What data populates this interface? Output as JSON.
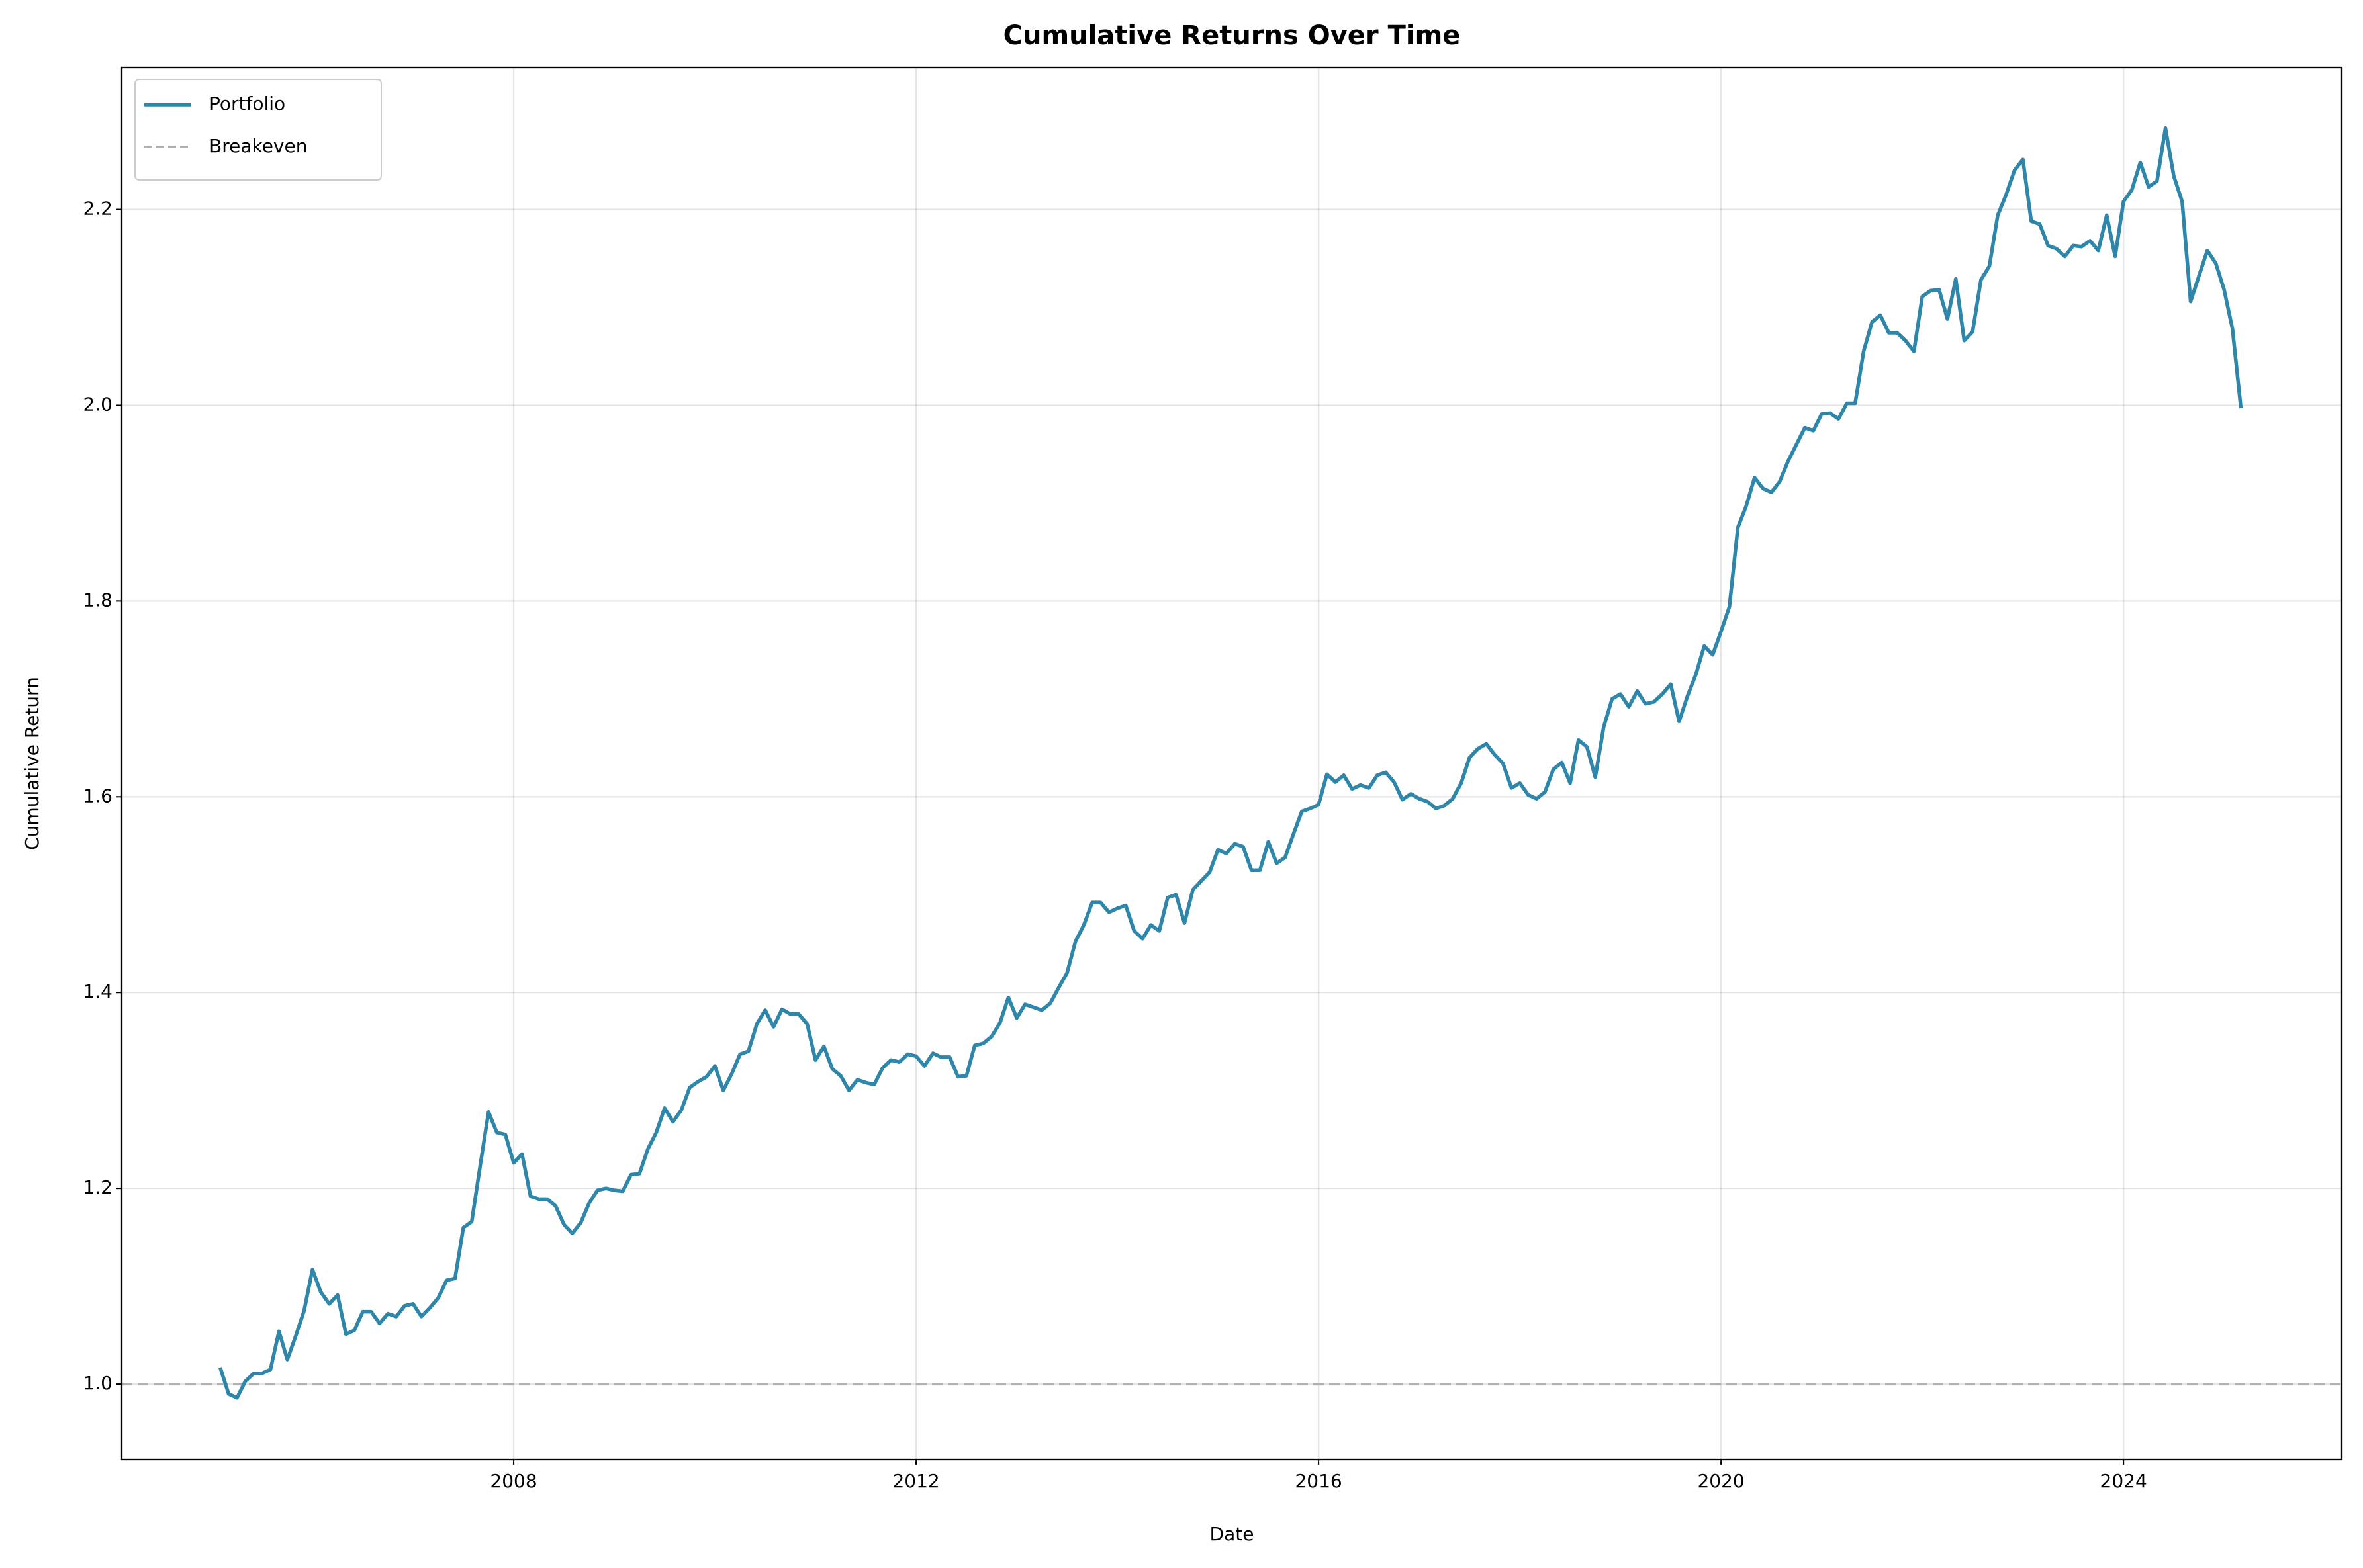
{
  "chart_data": {
    "type": "line",
    "title": "Cumulative Returns Over Time",
    "xlabel": "Date",
    "ylabel": "Cumulative Return",
    "x": [
      2005.083,
      2005.167,
      2005.25,
      2005.333,
      2005.417,
      2005.5,
      2005.583,
      2005.667,
      2005.75,
      2005.833,
      2005.917,
      2006,
      2006.083,
      2006.167,
      2006.25,
      2006.333,
      2006.417,
      2006.5,
      2006.583,
      2006.667,
      2006.75,
      2006.833,
      2006.917,
      2007,
      2007.083,
      2007.167,
      2007.25,
      2007.333,
      2007.417,
      2007.5,
      2007.583,
      2007.667,
      2007.75,
      2007.833,
      2007.917,
      2008,
      2008.083,
      2008.167,
      2008.25,
      2008.333,
      2008.417,
      2008.5,
      2008.583,
      2008.667,
      2008.75,
      2008.833,
      2008.917,
      2009,
      2009.083,
      2009.167,
      2009.25,
      2009.333,
      2009.417,
      2009.5,
      2009.583,
      2009.667,
      2009.75,
      2009.833,
      2009.917,
      2010,
      2010.083,
      2010.167,
      2010.25,
      2010.333,
      2010.417,
      2010.5,
      2010.583,
      2010.667,
      2010.75,
      2010.833,
      2010.917,
      2011,
      2011.083,
      2011.167,
      2011.25,
      2011.333,
      2011.417,
      2011.5,
      2011.583,
      2011.667,
      2011.75,
      2011.833,
      2011.917,
      2012,
      2012.083,
      2012.167,
      2012.25,
      2012.333,
      2012.417,
      2012.5,
      2012.583,
      2012.667,
      2012.75,
      2012.833,
      2012.917,
      2013,
      2013.083,
      2013.167,
      2013.25,
      2013.333,
      2013.417,
      2013.5,
      2013.583,
      2013.667,
      2013.75,
      2013.833,
      2013.917,
      2014,
      2014.083,
      2014.167,
      2014.25,
      2014.333,
      2014.417,
      2014.5,
      2014.583,
      2014.667,
      2014.75,
      2014.833,
      2014.917,
      2015,
      2015.083,
      2015.167,
      2015.25,
      2015.333,
      2015.417,
      2015.5,
      2015.583,
      2015.667,
      2015.75,
      2015.833,
      2015.917,
      2016,
      2016.083,
      2016.167,
      2016.25,
      2016.333,
      2016.417,
      2016.5,
      2016.583,
      2016.667,
      2016.75,
      2016.833,
      2016.917,
      2017,
      2017.083,
      2017.167,
      2017.25,
      2017.333,
      2017.417,
      2017.5,
      2017.583,
      2017.667,
      2017.75,
      2017.833,
      2017.917,
      2018,
      2018.083,
      2018.167,
      2018.25,
      2018.333,
      2018.417,
      2018.5,
      2018.583,
      2018.667,
      2018.75,
      2018.833,
      2018.917,
      2019,
      2019.083,
      2019.167,
      2019.25,
      2019.333,
      2019.417,
      2019.5,
      2019.583,
      2019.667,
      2019.75,
      2019.833,
      2019.917,
      2020,
      2020.083,
      2020.167,
      2020.25,
      2020.333,
      2020.417,
      2020.5,
      2020.583,
      2020.667,
      2020.75,
      2020.833,
      2020.917,
      2021,
      2021.083,
      2021.167,
      2021.25,
      2021.333,
      2021.417,
      2021.5,
      2021.583,
      2021.667,
      2021.75,
      2021.833,
      2021.917,
      2022,
      2022.083,
      2022.167,
      2022.25,
      2022.333,
      2022.417,
      2022.5,
      2022.583,
      2022.667,
      2022.75,
      2022.833,
      2022.917,
      2023,
      2023.083,
      2023.167,
      2023.25,
      2023.333,
      2023.417,
      2023.5,
      2023.583,
      2023.667,
      2023.75,
      2023.833,
      2023.917,
      2024,
      2024.083,
      2024.167,
      2024.25,
      2024.333,
      2024.417,
      2024.5,
      2024.583,
      2024.667,
      2024.75,
      2024.833,
      2024.917,
      2025,
      2025.083,
      2025.167
    ],
    "series": [
      {
        "name": "Portfolio",
        "color": "#2e86ab",
        "values": [
          1.017,
          0.99,
          0.986,
          1.003,
          1.011,
          1.011,
          1.015,
          1.054,
          1.025,
          1.049,
          1.075,
          1.117,
          1.094,
          1.082,
          1.091,
          1.051,
          1.055,
          1.074,
          1.074,
          1.062,
          1.072,
          1.069,
          1.08,
          1.082,
          1.069,
          1.078,
          1.088,
          1.106,
          1.108,
          1.16,
          1.166,
          1.223,
          1.278,
          1.257,
          1.255,
          1.226,
          1.235,
          1.192,
          1.189,
          1.189,
          1.182,
          1.163,
          1.154,
          1.165,
          1.185,
          1.198,
          1.2,
          1.198,
          1.197,
          1.214,
          1.215,
          1.24,
          1.257,
          1.282,
          1.268,
          1.28,
          1.303,
          1.309,
          1.314,
          1.325,
          1.3,
          1.317,
          1.337,
          1.34,
          1.368,
          1.382,
          1.365,
          1.383,
          1.378,
          1.378,
          1.368,
          1.331,
          1.345,
          1.322,
          1.315,
          1.3,
          1.311,
          1.308,
          1.306,
          1.323,
          1.331,
          1.329,
          1.337,
          1.335,
          1.325,
          1.338,
          1.334,
          1.334,
          1.314,
          1.315,
          1.346,
          1.348,
          1.355,
          1.369,
          1.395,
          1.374,
          1.388,
          1.385,
          1.382,
          1.389,
          1.405,
          1.42,
          1.452,
          1.469,
          1.492,
          1.492,
          1.482,
          1.486,
          1.489,
          1.463,
          1.455,
          1.469,
          1.463,
          1.497,
          1.5,
          1.471,
          1.505,
          1.514,
          1.523,
          1.546,
          1.542,
          1.552,
          1.549,
          1.525,
          1.525,
          1.554,
          1.532,
          1.538,
          1.562,
          1.585,
          1.588,
          1.592,
          1.623,
          1.615,
          1.622,
          1.608,
          1.612,
          1.609,
          1.622,
          1.625,
          1.615,
          1.597,
          1.603,
          1.598,
          1.595,
          1.588,
          1.591,
          1.598,
          1.614,
          1.64,
          1.649,
          1.654,
          1.643,
          1.634,
          1.609,
          1.614,
          1.602,
          1.598,
          1.605,
          1.628,
          1.635,
          1.614,
          1.658,
          1.651,
          1.62,
          1.671,
          1.7,
          1.705,
          1.692,
          1.708,
          1.695,
          1.697,
          1.705,
          1.715,
          1.677,
          1.703,
          1.725,
          1.754,
          1.745,
          1.769,
          1.794,
          1.875,
          1.897,
          1.926,
          1.915,
          1.911,
          1.922,
          1.943,
          1.96,
          1.977,
          1.974,
          1.991,
          1.992,
          1.986,
          2.002,
          2.002,
          2.055,
          2.085,
          2.092,
          2.074,
          2.074,
          2.066,
          2.055,
          2.111,
          2.117,
          2.118,
          2.088,
          2.129,
          2.066,
          2.075,
          2.128,
          2.142,
          2.194,
          2.215,
          2.24,
          2.251,
          2.188,
          2.185,
          2.163,
          2.16,
          2.152,
          2.163,
          2.162,
          2.168,
          2.158,
          2.194,
          2.152,
          2.208,
          2.22,
          2.248,
          2.223,
          2.229,
          2.283,
          2.234,
          2.208,
          2.106,
          2.132,
          2.158,
          2.145,
          2.118,
          2.078,
          1.997
        ]
      }
    ],
    "reference_lines": [
      {
        "name": "Breakeven",
        "value": 1,
        "color": "#b0b0b0"
      }
    ],
    "xlim": [
      2004.105,
      2026.17
    ],
    "ylim": [
      0.923,
      2.345
    ],
    "xticks": [
      2008,
      2012,
      2016,
      2020,
      2024
    ],
    "yticks": [
      {
        "value": 1,
        "label": "1.0"
      },
      1.2,
      1.4,
      1.6,
      1.8,
      {
        "value": 2,
        "label": "2.0"
      },
      2.2
    ],
    "grid": true,
    "legend": "upper left"
  }
}
